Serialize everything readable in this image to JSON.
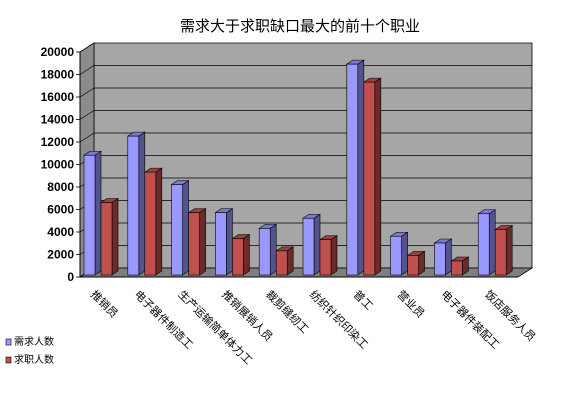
{
  "chart_data": {
    "type": "bar",
    "title": "需求大于求职缺口最大的前十个职业",
    "categories": [
      "推销员",
      "电子器件制造工",
      "生产运输简单体力工",
      "推销展销人员",
      "裁剪缝纫工",
      "纺织针织印染工",
      "普工",
      "营业员",
      "电子器件装配工",
      "饭店服务人员"
    ],
    "series": [
      {
        "name": "需求人数",
        "color": "#9999ff",
        "values": [
          11000,
          12700,
          8400,
          5900,
          4500,
          5400,
          19100,
          3800,
          3200,
          5800
        ]
      },
      {
        "name": "求职人数",
        "color": "#c0504d",
        "values": [
          6800,
          9500,
          5900,
          3600,
          2500,
          3500,
          17500,
          2100,
          1600,
          4400
        ]
      }
    ],
    "ylim": [
      0,
      20000
    ],
    "yticks": [
      "0",
      "2000",
      "4000",
      "6000",
      "8000",
      "10000",
      "12000",
      "14000",
      "16000",
      "18000",
      "20000"
    ],
    "grid": true,
    "legend_position": "bottom-left",
    "style": "3d-column"
  }
}
